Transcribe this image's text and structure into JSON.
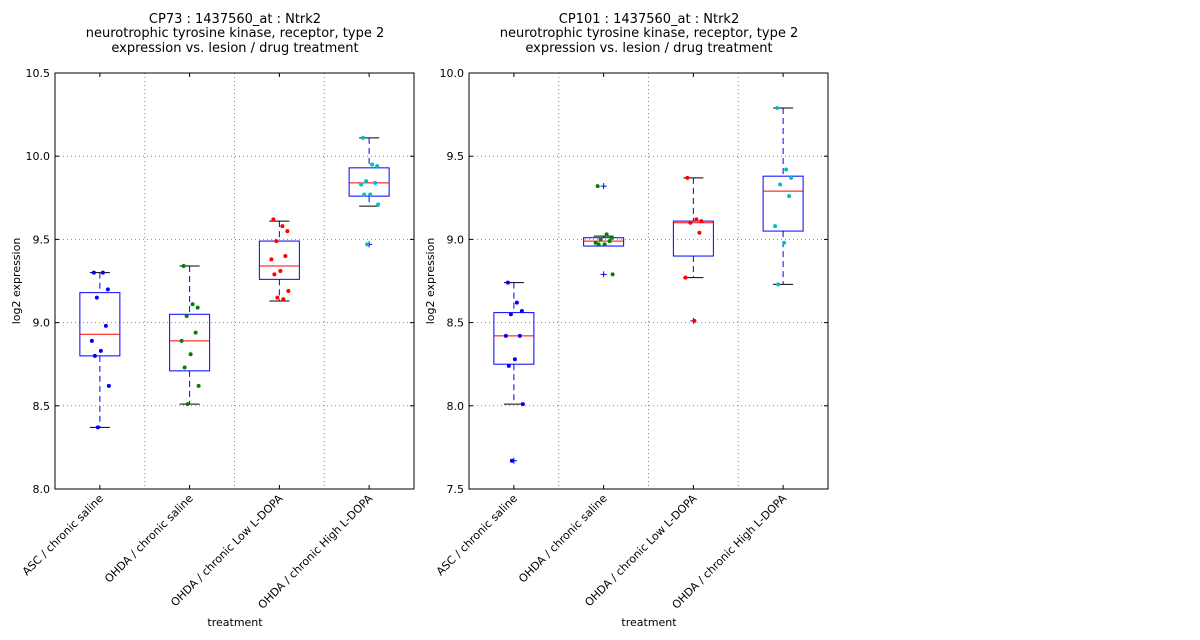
{
  "chart_data": [
    {
      "type": "box",
      "title_lines": [
        "CP73 : 1437560_at : Ntrk2",
        "neurotrophic tyrosine kinase, receptor, type 2",
        "expression vs. lesion / drug treatment"
      ],
      "xlabel": "treatment",
      "ylabel": "log2 expression",
      "ylim": [
        8.0,
        10.5
      ],
      "yticks": [
        "8.0",
        "8.5",
        "9.0",
        "9.5",
        "10.0",
        "10.5"
      ],
      "grid": true,
      "categories": [
        "ASC / chronic saline",
        "OHDA / chronic saline",
        "OHDA / chronic Low L-DOPA",
        "OHDA / chronic High L-DOPA"
      ],
      "boxes": [
        {
          "q1": 8.8,
          "median": 8.93,
          "q3": 9.18,
          "whisker_low": 8.37,
          "whisker_high": 9.3,
          "outliers": [],
          "color": "#0000ff",
          "points": [
            9.3,
            9.3,
            9.2,
            9.15,
            8.98,
            8.89,
            8.83,
            8.8,
            8.62,
            8.37
          ]
        },
        {
          "q1": 8.71,
          "median": 8.89,
          "q3": 9.05,
          "whisker_low": 8.51,
          "whisker_high": 9.34,
          "outliers": [],
          "color": "#008000",
          "points": [
            9.34,
            9.11,
            9.09,
            9.04,
            8.94,
            8.89,
            8.81,
            8.73,
            8.62,
            8.51
          ]
        },
        {
          "q1": 9.26,
          "median": 9.34,
          "q3": 9.49,
          "whisker_low": 9.13,
          "whisker_high": 9.61,
          "outliers": [],
          "color": "#ff0000",
          "points": [
            9.62,
            9.58,
            9.55,
            9.49,
            9.4,
            9.38,
            9.31,
            9.29,
            9.19,
            9.15,
            9.14
          ]
        },
        {
          "q1": 9.76,
          "median": 9.84,
          "q3": 9.93,
          "whisker_low": 9.7,
          "whisker_high": 10.11,
          "outliers": [
            9.47
          ],
          "color": "#00bfbf",
          "points": [
            10.11,
            9.95,
            9.94,
            9.85,
            9.84,
            9.83,
            9.77,
            9.77,
            9.71,
            9.47
          ]
        }
      ]
    },
    {
      "type": "box",
      "title_lines": [
        "CP101 : 1437560_at : Ntrk2",
        "neurotrophic tyrosine kinase, receptor, type 2",
        "expression vs. lesion / drug treatment"
      ],
      "xlabel": "treatment",
      "ylabel": "log2 expression",
      "ylim": [
        7.5,
        10.0
      ],
      "yticks": [
        "7.5",
        "8.0",
        "8.5",
        "9.0",
        "9.5",
        "10.0"
      ],
      "grid": true,
      "categories": [
        "ASC / chronic saline",
        "OHDA / chronic saline",
        "OHDA / chronic Low L-DOPA",
        "OHDA / chronic High L-DOPA"
      ],
      "boxes": [
        {
          "q1": 8.25,
          "median": 8.42,
          "q3": 8.56,
          "whisker_low": 8.01,
          "whisker_high": 8.74,
          "outliers": [
            7.67
          ],
          "color": "#0000ff",
          "points": [
            8.74,
            8.62,
            8.57,
            8.55,
            8.42,
            8.42,
            8.28,
            8.24,
            8.01,
            7.67
          ]
        },
        {
          "q1": 8.96,
          "median": 8.99,
          "q3": 9.01,
          "whisker_low": 8.96,
          "whisker_high": 9.02,
          "outliers": [
            9.32,
            8.79
          ],
          "color": "#008000",
          "points": [
            9.32,
            9.03,
            9.01,
            9.0,
            8.99,
            8.98,
            8.97,
            8.97,
            8.79
          ]
        },
        {
          "q1": 8.9,
          "median": 9.1,
          "q3": 9.11,
          "whisker_low": 8.77,
          "whisker_high": 9.37,
          "outliers": [
            8.51
          ],
          "color": "#ff0000",
          "points": [
            9.37,
            9.12,
            9.11,
            9.1,
            9.04,
            8.77,
            8.51
          ]
        },
        {
          "q1": 9.05,
          "median": 9.29,
          "q3": 9.38,
          "whisker_low": 8.73,
          "whisker_high": 9.79,
          "outliers": [],
          "color": "#00bfbf",
          "points": [
            9.79,
            9.42,
            9.37,
            9.33,
            9.26,
            9.08,
            8.98,
            8.73
          ]
        }
      ]
    }
  ]
}
